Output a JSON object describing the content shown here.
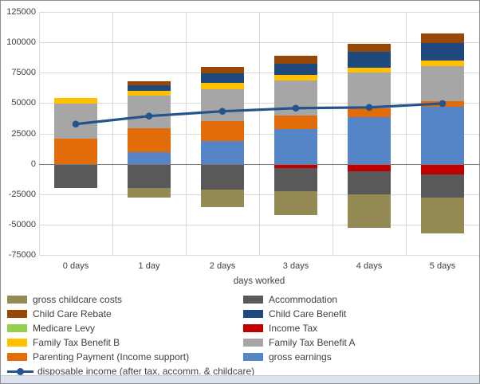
{
  "chart_data": {
    "type": "bar",
    "subtype": "stacked-bar-with-line-overlay",
    "title": "",
    "xlabel": "days worked",
    "ylabel": "",
    "grid": true,
    "legend_position": "bottom-two-columns",
    "categories": [
      "0 days",
      "1 day",
      "2 days",
      "3 days",
      "4 days",
      "5 days"
    ],
    "y_axis": {
      "min": -75000,
      "max": 125000,
      "step": 25000,
      "tick_labels": [
        "125000",
        "100000",
        "75000",
        "50000",
        "25000",
        "0",
        "-25000",
        "-50000",
        "-75000"
      ]
    },
    "bar_series": [
      {
        "name": "gross earnings",
        "color": "#5585C6",
        "values": [
          0,
          9800,
          19000,
          28900,
          38200,
          47000
        ]
      },
      {
        "name": "Parenting Payment (Income support)",
        "color": "#E36C0A",
        "values": [
          20800,
          19700,
          16400,
          11100,
          7700,
          4800
        ]
      },
      {
        "name": "Family Tax Benefit A",
        "color": "#A6A6A6",
        "values": [
          29100,
          26900,
          26300,
          28900,
          29000,
          28400
        ]
      },
      {
        "name": "Family Tax Benefit B",
        "color": "#FFC000",
        "values": [
          4400,
          3800,
          5000,
          4100,
          4400,
          5100
        ]
      },
      {
        "name": "Child Care Benefit",
        "color": "#1F497D",
        "values": [
          0,
          4700,
          8100,
          9700,
          13100,
          14200
        ]
      },
      {
        "name": "Child Care Rebate",
        "color": "#974706",
        "values": [
          0,
          2900,
          4900,
          6300,
          6600,
          7600
        ]
      },
      {
        "name": "Medicare Levy",
        "color": "#92D050",
        "values": [
          0,
          0,
          0,
          0,
          0,
          0
        ]
      },
      {
        "name": "Income Tax",
        "color": "#C00000",
        "values": [
          0,
          0,
          0,
          -3500,
          -6000,
          -8400
        ]
      },
      {
        "name": "Accommodation",
        "color": "#595959",
        "values": [
          -20100,
          -19700,
          -21000,
          -18800,
          -18800,
          -19300
        ]
      },
      {
        "name": "gross childcare costs",
        "color": "#948A54",
        "values": [
          0,
          -8000,
          -14200,
          -19900,
          -27700,
          -29500
        ]
      }
    ],
    "line_series": {
      "name": "disposable income (after tax, accomm. & childcare)",
      "color": "#24538F",
      "values": [
        32800,
        39400,
        43300,
        45900,
        46500,
        49700
      ]
    },
    "legend": {
      "left": [
        {
          "label": "gross childcare costs",
          "color": "#948A54",
          "type": "box"
        },
        {
          "label": "Child Care Rebate",
          "color": "#974706",
          "type": "box"
        },
        {
          "label": "Medicare Levy",
          "color": "#92D050",
          "type": "box"
        },
        {
          "label": "Family Tax Benefit B",
          "color": "#FFC000",
          "type": "box"
        },
        {
          "label": "Parenting Payment (Income support)",
          "color": "#E36C0A",
          "type": "box"
        },
        {
          "label": "disposable income (after tax, accomm. & childcare)",
          "color": "#24538F",
          "type": "line"
        }
      ],
      "right": [
        {
          "label": "Accommodation",
          "color": "#595959",
          "type": "box"
        },
        {
          "label": "Child Care Benefit",
          "color": "#1F497D",
          "type": "box"
        },
        {
          "label": "Income Tax",
          "color": "#C00000",
          "type": "box"
        },
        {
          "label": "Family Tax Benefit A",
          "color": "#A6A6A6",
          "type": "box"
        },
        {
          "label": "gross earnings",
          "color": "#5585C6",
          "type": "box"
        }
      ]
    }
  }
}
